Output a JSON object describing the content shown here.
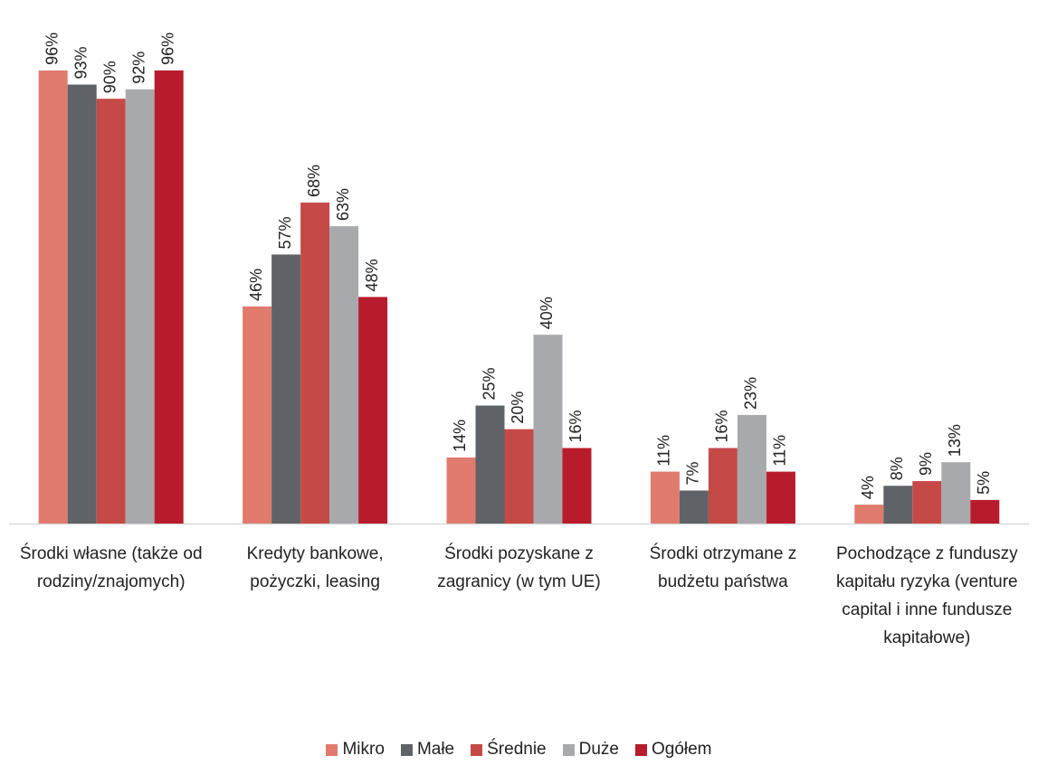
{
  "chart_data": {
    "type": "bar",
    "categories": [
      "Środki własne (także od rodziny/znajomych)",
      "Kredyty bankowe, pożyczki, leasing",
      "Środki pozyskane z zagranicy (w tym UE)",
      "Środki otrzymane z budżetu państwa",
      "Pochodzące z funduszy kapitału ryzyka (venture capital i inne fundusze kapitałowe)"
    ],
    "series": [
      {
        "name": "Mikro",
        "color": "#e07b6e",
        "values": [
          96,
          46,
          14,
          11,
          4
        ],
        "value_labels": [
          "96%",
          "46%",
          "14%",
          "11%",
          "4%"
        ]
      },
      {
        "name": "Małe",
        "color": "#5f6368",
        "values": [
          93,
          57,
          25,
          7,
          8
        ],
        "value_labels": [
          "93%",
          "57%",
          "25%",
          "7%",
          "8%"
        ]
      },
      {
        "name": "Średnie",
        "color": "#c54a47",
        "values": [
          90,
          68,
          20,
          16,
          9
        ],
        "value_labels": [
          "90%",
          "68%",
          "20%",
          "16%",
          "9%"
        ]
      },
      {
        "name": "Duże",
        "color": "#a7a9ac",
        "values": [
          92,
          63,
          40,
          23,
          13
        ],
        "value_labels": [
          "92%",
          "63%",
          "40%",
          "23%",
          "13%"
        ]
      },
      {
        "name": "Ogółem",
        "color": "#b81c2c",
        "values": [
          96,
          48,
          16,
          11,
          5
        ],
        "value_labels": [
          "96%",
          "48%",
          "16%",
          "11%",
          "5%"
        ]
      }
    ],
    "ylim": [
      0,
      100
    ],
    "legend": "bottom"
  }
}
